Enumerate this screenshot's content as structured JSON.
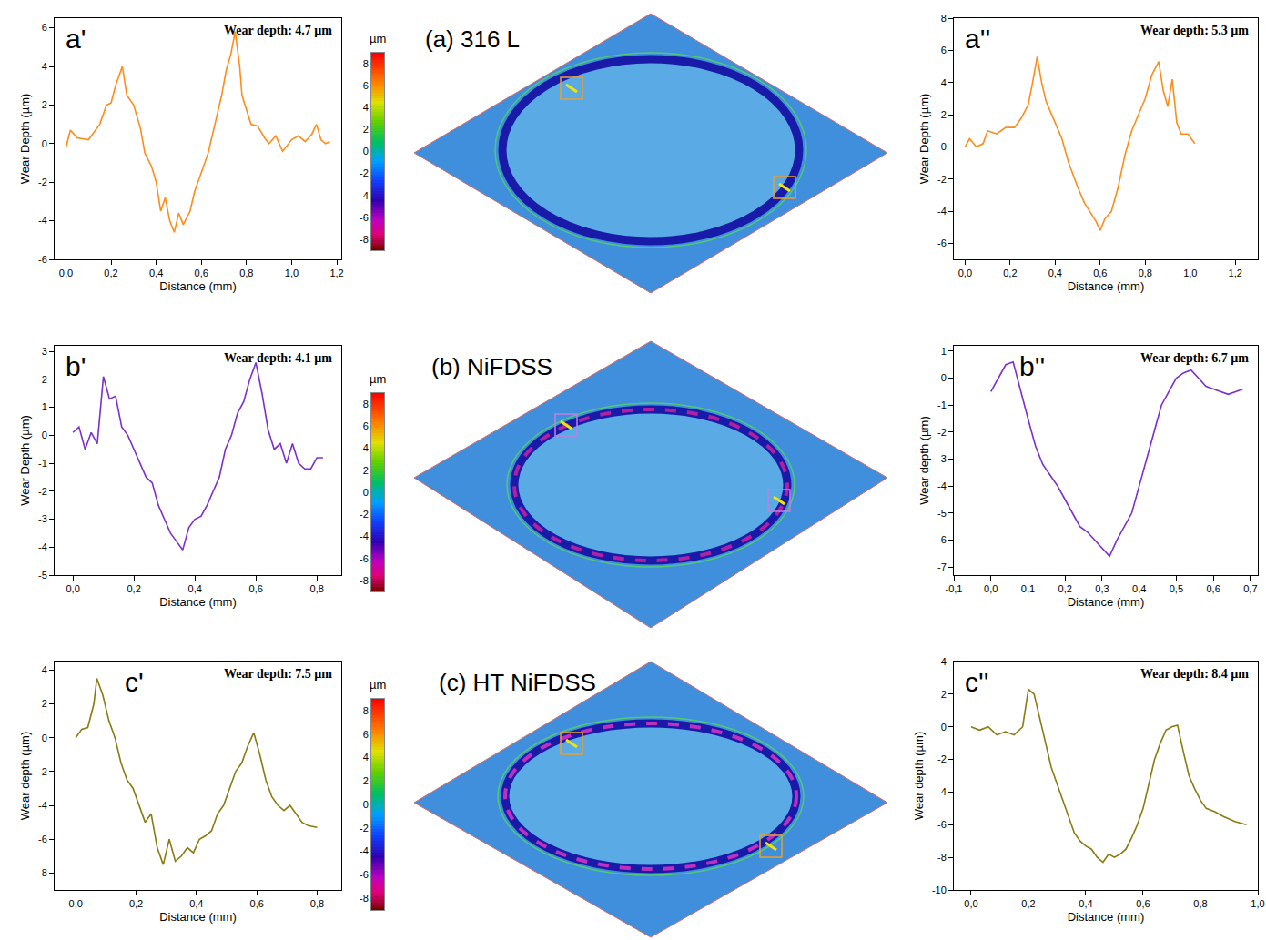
{
  "chart_data": [
    {
      "type": "line",
      "panel": "a'",
      "title": "Wear depth: 4.7 µm",
      "x_label": "Distance (mm)",
      "y_label": "Wear Depth (µm)",
      "color": "#ff8c1a",
      "x": [
        0,
        0.02,
        0.05,
        0.1,
        0.15,
        0.18,
        0.2,
        0.22,
        0.25,
        0.27,
        0.3,
        0.33,
        0.35,
        0.38,
        0.4,
        0.42,
        0.44,
        0.46,
        0.48,
        0.5,
        0.52,
        0.55,
        0.57,
        0.6,
        0.63,
        0.66,
        0.69,
        0.71,
        0.73,
        0.75,
        0.77,
        0.78,
        0.8,
        0.82,
        0.85,
        0.88,
        0.9,
        0.93,
        0.96,
        1.0,
        1.03,
        1.06,
        1.09,
        1.11,
        1.13,
        1.15,
        1.17
      ],
      "values": [
        -0.2,
        0.7,
        0.3,
        0.2,
        1.0,
        2.0,
        2.1,
        3.0,
        4.0,
        2.5,
        2.0,
        0.8,
        -0.5,
        -1.2,
        -2.0,
        -3.5,
        -2.8,
        -4.0,
        -4.6,
        -3.6,
        -4.2,
        -3.5,
        -2.5,
        -1.5,
        -0.5,
        1.0,
        2.5,
        3.8,
        4.6,
        5.8,
        4.0,
        2.5,
        1.8,
        1.0,
        0.9,
        0.3,
        0.0,
        0.4,
        -0.4,
        0.2,
        0.4,
        0.1,
        0.5,
        1.0,
        0.2,
        0.0,
        0.1
      ],
      "xlim": [
        -0.05,
        1.22
      ],
      "ylim": [
        -6,
        6.5
      ],
      "xticks": [
        {
          "value": 0,
          "label": "0,0"
        },
        {
          "value": 0.2,
          "label": "0,2"
        },
        {
          "value": 0.4,
          "label": "0,4"
        },
        {
          "value": 0.6,
          "label": "0,6"
        },
        {
          "value": 0.8,
          "label": "0,8"
        },
        {
          "value": 1.0,
          "label": "1,0"
        },
        {
          "value": 1.2,
          "label": "1,2"
        }
      ],
      "yticks": [
        -6,
        -4,
        -2,
        0,
        2,
        4,
        6
      ]
    },
    {
      "type": "map",
      "title": "(a) 316 L",
      "colorbar": {
        "title": "µm",
        "range": [
          -9,
          9
        ],
        "ticks": [
          -8,
          -6,
          -4,
          -2,
          0,
          2,
          4,
          6,
          8
        ]
      }
    },
    {
      "type": "line",
      "panel": "a''",
      "title": "Wear depth: 5.3 µm",
      "x_label": "Distance (mm)",
      "y_label": "Wear Depth (µm)",
      "color": "#ff8c1a",
      "x": [
        0,
        0.02,
        0.05,
        0.08,
        0.1,
        0.14,
        0.18,
        0.22,
        0.25,
        0.28,
        0.3,
        0.32,
        0.34,
        0.36,
        0.4,
        0.43,
        0.46,
        0.5,
        0.53,
        0.56,
        0.58,
        0.6,
        0.62,
        0.65,
        0.68,
        0.71,
        0.74,
        0.77,
        0.8,
        0.83,
        0.86,
        0.88,
        0.9,
        0.92,
        0.94,
        0.96,
        0.99,
        1.02
      ],
      "values": [
        0,
        0.5,
        0.0,
        0.2,
        1.0,
        0.8,
        1.2,
        1.2,
        1.8,
        2.6,
        4.0,
        5.6,
        4.0,
        2.8,
        1.5,
        0.5,
        -1.0,
        -2.5,
        -3.5,
        -4.2,
        -4.6,
        -5.2,
        -4.5,
        -4.0,
        -2.5,
        -0.5,
        1.0,
        2.0,
        3.0,
        4.5,
        5.3,
        3.5,
        2.5,
        4.2,
        1.5,
        0.8,
        0.8,
        0.2
      ],
      "xlim": [
        -0.05,
        1.3
      ],
      "ylim": [
        -7,
        8
      ],
      "xticks": [
        {
          "value": 0,
          "label": "0,0"
        },
        {
          "value": 0.2,
          "label": "0,2"
        },
        {
          "value": 0.4,
          "label": "0,4"
        },
        {
          "value": 0.6,
          "label": "0,6"
        },
        {
          "value": 0.8,
          "label": "0,8"
        },
        {
          "value": 1.0,
          "label": "1,0"
        },
        {
          "value": 1.2,
          "label": "1,2"
        }
      ],
      "yticks": [
        -6,
        -4,
        -2,
        0,
        2,
        4,
        6,
        8
      ]
    },
    {
      "type": "line",
      "panel": "b'",
      "title": "Wear depth: 4.1 µm",
      "x_label": "Distance (mm)",
      "y_label": "Wear Depth (µm)",
      "color": "#7b2fd0",
      "x": [
        0,
        0.02,
        0.04,
        0.06,
        0.08,
        0.1,
        0.12,
        0.14,
        0.16,
        0.18,
        0.2,
        0.22,
        0.24,
        0.26,
        0.28,
        0.3,
        0.32,
        0.34,
        0.36,
        0.38,
        0.4,
        0.42,
        0.44,
        0.46,
        0.48,
        0.5,
        0.52,
        0.54,
        0.56,
        0.58,
        0.6,
        0.62,
        0.64,
        0.66,
        0.68,
        0.7,
        0.72,
        0.74,
        0.76,
        0.78,
        0.8,
        0.82
      ],
      "values": [
        0.1,
        0.3,
        -0.5,
        0.1,
        -0.3,
        2.1,
        1.3,
        1.4,
        0.3,
        0.0,
        -0.5,
        -1.0,
        -1.5,
        -1.7,
        -2.5,
        -3.0,
        -3.5,
        -3.8,
        -4.1,
        -3.3,
        -3.0,
        -2.9,
        -2.5,
        -2.0,
        -1.5,
        -0.5,
        0.0,
        0.8,
        1.2,
        2.0,
        2.6,
        1.5,
        0.2,
        -0.5,
        -0.3,
        -1.0,
        -0.3,
        -1.0,
        -1.2,
        -1.2,
        -0.8,
        -0.8
      ],
      "xlim": [
        -0.06,
        0.88
      ],
      "ylim": [
        -5,
        3.2
      ],
      "xticks": [
        {
          "value": 0,
          "label": "0,0"
        },
        {
          "value": 0.2,
          "label": "0,2"
        },
        {
          "value": 0.4,
          "label": "0,4"
        },
        {
          "value": 0.6,
          "label": "0,6"
        },
        {
          "value": 0.8,
          "label": "0,8"
        }
      ],
      "yticks": [
        -5,
        -4,
        -3,
        -2,
        -1,
        0,
        1,
        2,
        3
      ]
    },
    {
      "type": "map",
      "title": "(b) NiFDSS",
      "colorbar": {
        "title": "µm",
        "range": [
          -9,
          9
        ],
        "ticks": [
          -8,
          -6,
          -4,
          -2,
          0,
          2,
          4,
          6,
          8
        ]
      }
    },
    {
      "type": "line",
      "panel": "b''",
      "title": "Wear depth: 6.7 µm",
      "x_label": "Distance (mm)",
      "y_label": "Wear depth (µm)",
      "color": "#7b2fd0",
      "x": [
        0,
        0.02,
        0.04,
        0.06,
        0.08,
        0.1,
        0.12,
        0.14,
        0.16,
        0.18,
        0.2,
        0.22,
        0.24,
        0.26,
        0.28,
        0.3,
        0.32,
        0.34,
        0.36,
        0.38,
        0.4,
        0.42,
        0.44,
        0.46,
        0.48,
        0.5,
        0.52,
        0.54,
        0.56,
        0.58,
        0.6,
        0.62,
        0.64,
        0.66,
        0.68
      ],
      "values": [
        -0.5,
        0.0,
        0.5,
        0.6,
        -0.5,
        -1.5,
        -2.5,
        -3.2,
        -3.6,
        -4.0,
        -4.5,
        -5.0,
        -5.5,
        -5.7,
        -6.0,
        -6.3,
        -6.6,
        -6.0,
        -5.5,
        -5.0,
        -4.0,
        -3.0,
        -2.0,
        -1.0,
        -0.5,
        0.0,
        0.2,
        0.3,
        0.0,
        -0.3,
        -0.4,
        -0.5,
        -0.6,
        -0.5,
        -0.4
      ],
      "xlim": [
        -0.1,
        0.72
      ],
      "ylim": [
        -7.3,
        1.2
      ],
      "xticks": [
        {
          "value": -0.1,
          "label": "-0,1"
        },
        {
          "value": 0,
          "label": "0,0"
        },
        {
          "value": 0.1,
          "label": "0,1"
        },
        {
          "value": 0.2,
          "label": "0,2"
        },
        {
          "value": 0.3,
          "label": "0,3"
        },
        {
          "value": 0.4,
          "label": "0,4"
        },
        {
          "value": 0.5,
          "label": "0,5"
        },
        {
          "value": 0.6,
          "label": "0,6"
        },
        {
          "value": 0.7,
          "label": "0,7"
        }
      ],
      "yticks": [
        -7,
        -6,
        -5,
        -4,
        -3,
        -2,
        -1,
        0,
        1
      ]
    },
    {
      "type": "line",
      "panel": "c'",
      "title": "Wear depth: 7.5 µm",
      "x_label": "Distance (mm)",
      "y_label": "Wear depth (µm)",
      "color": "#8a7a10",
      "x": [
        0,
        0.02,
        0.04,
        0.06,
        0.07,
        0.09,
        0.11,
        0.13,
        0.15,
        0.17,
        0.19,
        0.21,
        0.23,
        0.25,
        0.27,
        0.29,
        0.31,
        0.33,
        0.35,
        0.37,
        0.39,
        0.41,
        0.43,
        0.45,
        0.47,
        0.49,
        0.51,
        0.53,
        0.55,
        0.57,
        0.59,
        0.61,
        0.63,
        0.65,
        0.67,
        0.69,
        0.71,
        0.73,
        0.75,
        0.77,
        0.8
      ],
      "values": [
        0,
        0.5,
        0.6,
        2.0,
        3.5,
        2.5,
        1.0,
        0.0,
        -1.5,
        -2.5,
        -3.0,
        -4.0,
        -5.0,
        -4.5,
        -6.5,
        -7.5,
        -6.0,
        -7.3,
        -7.0,
        -6.5,
        -6.8,
        -6.0,
        -5.8,
        -5.5,
        -4.5,
        -4.0,
        -3.0,
        -2.0,
        -1.5,
        -0.5,
        0.3,
        -1.0,
        -2.5,
        -3.5,
        -4.0,
        -4.3,
        -4.0,
        -4.5,
        -5.0,
        -5.2,
        -5.3
      ],
      "xlim": [
        -0.07,
        0.88
      ],
      "ylim": [
        -9,
        4.5
      ],
      "xticks": [
        {
          "value": 0,
          "label": "0,0"
        },
        {
          "value": 0.2,
          "label": "0,2"
        },
        {
          "value": 0.4,
          "label": "0,4"
        },
        {
          "value": 0.6,
          "label": "0,6"
        },
        {
          "value": 0.8,
          "label": "0,8"
        }
      ],
      "yticks": [
        -8,
        -6,
        -4,
        -2,
        0,
        2,
        4
      ]
    },
    {
      "type": "map",
      "title": "(c) HT NiFDSS",
      "colorbar": {
        "title": "µm",
        "range": [
          -9,
          9
        ],
        "ticks": [
          -8,
          -6,
          -4,
          -2,
          0,
          2,
          4,
          6,
          8
        ]
      }
    },
    {
      "type": "line",
      "panel": "c''",
      "title": "Wear depth: 8.4 µm",
      "x_label": "Distance (mm)",
      "y_label": "Wear depth (µm)",
      "color": "#8a7a10",
      "x": [
        0,
        0.03,
        0.06,
        0.09,
        0.12,
        0.15,
        0.18,
        0.2,
        0.22,
        0.24,
        0.26,
        0.28,
        0.3,
        0.32,
        0.34,
        0.36,
        0.38,
        0.4,
        0.42,
        0.44,
        0.46,
        0.48,
        0.5,
        0.52,
        0.54,
        0.56,
        0.58,
        0.6,
        0.62,
        0.64,
        0.66,
        0.68,
        0.7,
        0.72,
        0.74,
        0.76,
        0.78,
        0.8,
        0.82,
        0.85,
        0.88,
        0.92,
        0.96
      ],
      "values": [
        0,
        -0.2,
        0.0,
        -0.5,
        -0.3,
        -0.5,
        0.0,
        2.3,
        2.0,
        0.5,
        -1.0,
        -2.5,
        -3.5,
        -4.5,
        -5.5,
        -6.5,
        -7.0,
        -7.3,
        -7.5,
        -8.0,
        -8.3,
        -7.8,
        -8.0,
        -7.8,
        -7.5,
        -6.8,
        -6.0,
        -5.0,
        -3.5,
        -2.0,
        -1.0,
        -0.2,
        0.0,
        0.1,
        -1.5,
        -3.0,
        -3.8,
        -4.5,
        -5.0,
        -5.2,
        -5.5,
        -5.8,
        -6.0
      ],
      "xlim": [
        -0.06,
        1.0
      ],
      "ylim": [
        -10,
        4
      ],
      "xticks": [
        {
          "value": 0,
          "label": "0,0"
        },
        {
          "value": 0.2,
          "label": "0,2"
        },
        {
          "value": 0.4,
          "label": "0,4"
        },
        {
          "value": 0.6,
          "label": "0,6"
        },
        {
          "value": 0.8,
          "label": "0,8"
        },
        {
          "value": 1.0,
          "label": "1,0"
        }
      ],
      "yticks": [
        -10,
        -8,
        -6,
        -4,
        -2,
        0,
        2,
        4
      ]
    }
  ]
}
